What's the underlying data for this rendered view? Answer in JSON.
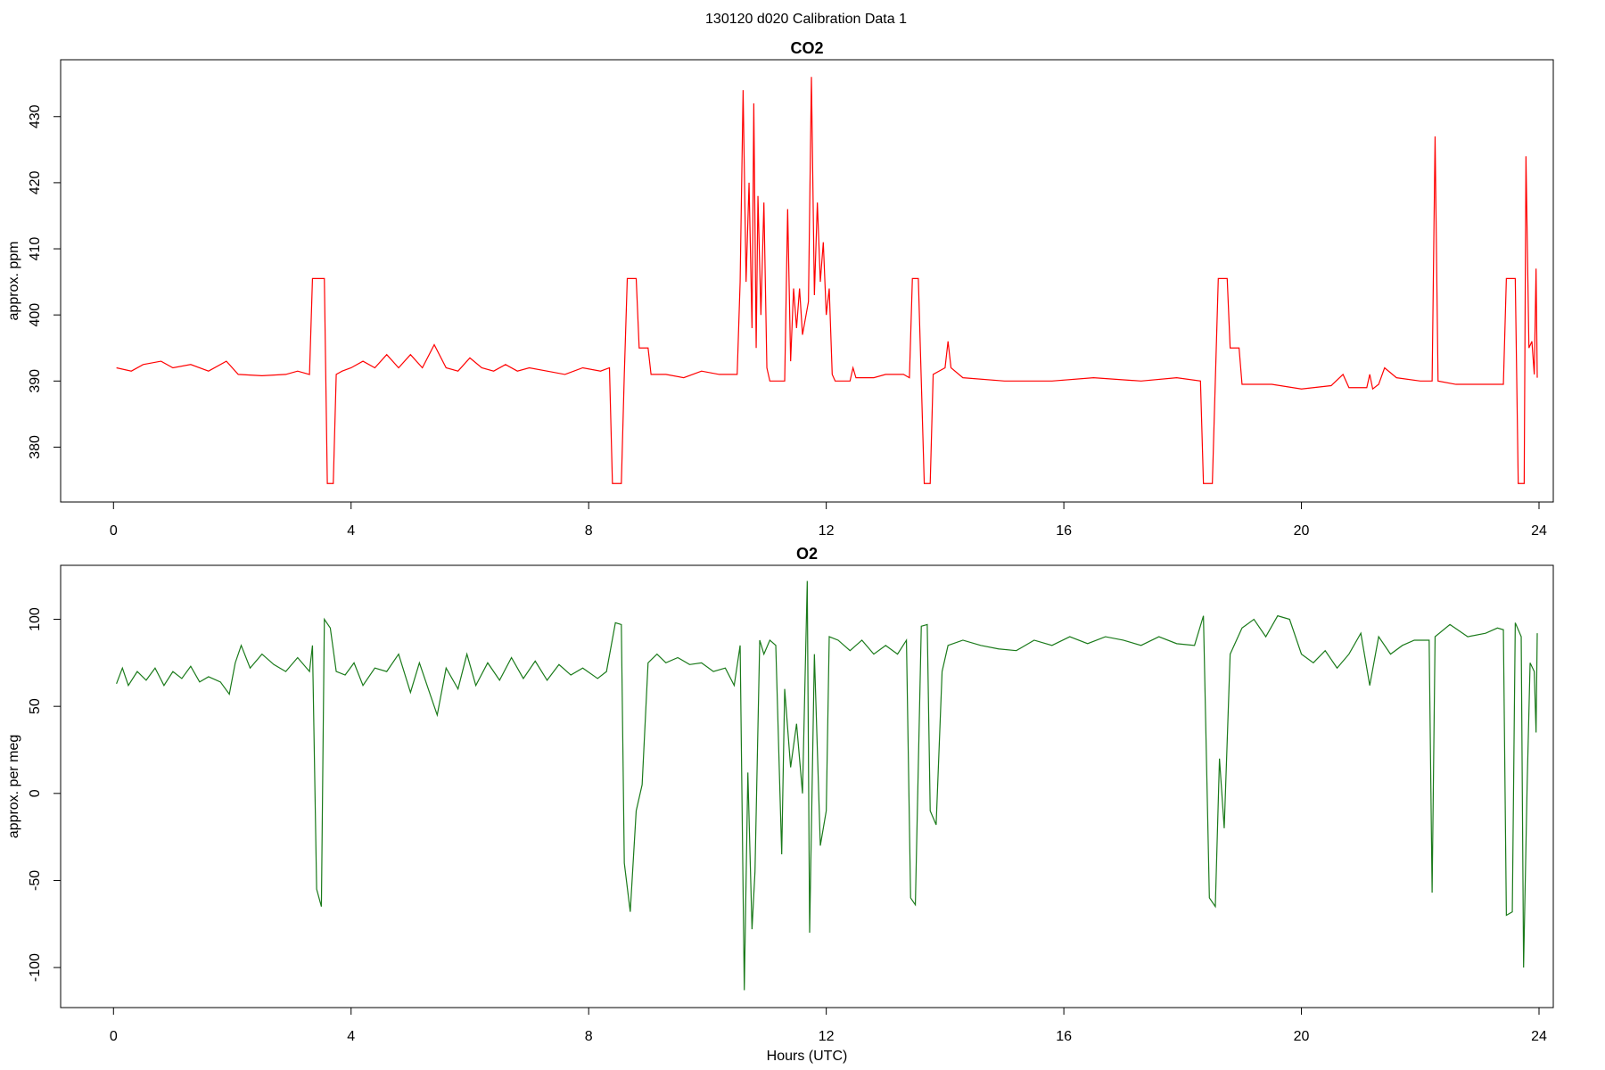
{
  "title": "130120   d020   Calibration Data 1",
  "chart_data": [
    {
      "type": "line",
      "title": "CO2",
      "ylabel": "approx. ppm",
      "color": "#ff0000",
      "xlim": [
        -0.89,
        24.24
      ],
      "xticks": [
        0,
        4,
        8,
        12,
        16,
        20,
        24
      ],
      "ylim": [
        371.7,
        438.6
      ],
      "yticks": [
        380,
        390,
        400,
        410,
        420,
        430
      ],
      "x": [
        0.05,
        0.3,
        0.5,
        0.8,
        1.0,
        1.3,
        1.6,
        1.9,
        2.1,
        2.5,
        2.9,
        3.1,
        3.3,
        3.35,
        3.55,
        3.6,
        3.7,
        3.75,
        3.85,
        4.0,
        4.2,
        4.4,
        4.6,
        4.8,
        5.0,
        5.2,
        5.4,
        5.6,
        5.8,
        6.0,
        6.2,
        6.4,
        6.6,
        6.8,
        7.0,
        7.3,
        7.6,
        7.9,
        8.2,
        8.35,
        8.4,
        8.55,
        8.6,
        8.65,
        8.8,
        8.85,
        9.0,
        9.05,
        9.3,
        9.6,
        9.9,
        10.2,
        10.5,
        10.55,
        10.6,
        10.65,
        10.7,
        10.75,
        10.78,
        10.82,
        10.85,
        10.9,
        10.95,
        11.0,
        11.05,
        11.3,
        11.35,
        11.4,
        11.45,
        11.5,
        11.55,
        11.6,
        11.7,
        11.75,
        11.8,
        11.85,
        11.9,
        11.95,
        12.0,
        12.05,
        12.1,
        12.15,
        12.4,
        12.45,
        12.5,
        12.8,
        13.0,
        13.3,
        13.4,
        13.45,
        13.55,
        13.65,
        13.75,
        13.8,
        14.0,
        14.05,
        14.1,
        14.3,
        15,
        15.8,
        16.5,
        17.3,
        17.9,
        18.3,
        18.35,
        18.5,
        18.55,
        18.6,
        18.75,
        18.8,
        18.95,
        19.0,
        19.5,
        20,
        20.5,
        20.7,
        20.8,
        21.1,
        21.15,
        21.2,
        21.3,
        21.4,
        21.6,
        22.0,
        22.2,
        22.25,
        22.3,
        22.6,
        23.0,
        23.4,
        23.45,
        23.6,
        23.65,
        23.75,
        23.78,
        23.83,
        23.88,
        23.92,
        23.95,
        23.97
      ],
      "values": [
        392,
        391.5,
        392.5,
        393,
        392,
        392.5,
        391.5,
        393,
        391,
        390.8,
        391,
        391.5,
        391,
        405.5,
        405.5,
        374.5,
        374.5,
        391,
        391.5,
        392,
        393,
        392,
        394,
        392,
        394,
        392,
        395.5,
        392,
        391.5,
        393.5,
        392,
        391.5,
        392.5,
        391.5,
        392,
        391.5,
        391,
        392,
        391.5,
        392,
        374.5,
        374.5,
        391,
        405.5,
        405.5,
        395,
        395,
        391,
        391,
        390.5,
        391.5,
        391,
        391,
        405,
        434,
        405,
        420,
        398,
        432,
        395,
        418,
        400,
        417,
        392,
        390,
        390,
        416,
        393,
        404,
        398,
        404,
        397,
        402,
        436,
        403,
        417,
        405,
        411,
        400,
        404,
        391,
        390,
        390,
        392,
        390.5,
        390.5,
        391,
        391,
        390.5,
        405.5,
        405.5,
        374.5,
        374.5,
        391,
        392,
        396,
        392,
        390.5,
        390,
        390,
        390.5,
        390,
        390.5,
        390,
        374.5,
        374.5,
        390,
        405.5,
        405.5,
        395,
        395,
        389.5,
        389.5,
        388.8,
        389.3,
        391,
        389,
        389,
        391,
        388.8,
        389.5,
        392,
        390.5,
        390,
        390,
        427,
        390,
        389.5,
        389.5,
        389.5,
        405.5,
        405.5,
        374.5,
        374.5,
        424,
        395,
        396,
        391,
        407,
        390.5
      ]
    },
    {
      "type": "line",
      "title": "O2",
      "ylabel": "approx. per meg",
      "xlabel": "Hours (UTC)",
      "color": "#1a7a1a",
      "xlim": [
        -0.89,
        24.24
      ],
      "xticks": [
        0,
        4,
        8,
        12,
        16,
        20,
        24
      ],
      "ylim": [
        -123,
        131
      ],
      "yticks": [
        -100,
        -50,
        0,
        50,
        100
      ],
      "x": [
        0.05,
        0.15,
        0.25,
        0.4,
        0.55,
        0.7,
        0.85,
        1.0,
        1.15,
        1.3,
        1.45,
        1.6,
        1.8,
        1.95,
        2.05,
        2.15,
        2.3,
        2.5,
        2.7,
        2.9,
        3.1,
        3.3,
        3.35,
        3.42,
        3.5,
        3.55,
        3.65,
        3.75,
        3.9,
        4.05,
        4.2,
        4.4,
        4.6,
        4.8,
        5.0,
        5.15,
        5.3,
        5.45,
        5.6,
        5.8,
        5.95,
        6.1,
        6.3,
        6.5,
        6.7,
        6.9,
        7.1,
        7.3,
        7.5,
        7.7,
        7.9,
        8.15,
        8.3,
        8.45,
        8.55,
        8.6,
        8.7,
        8.8,
        8.9,
        9.0,
        9.15,
        9.3,
        9.5,
        9.7,
        9.9,
        10.1,
        10.3,
        10.45,
        10.55,
        10.62,
        10.68,
        10.75,
        10.8,
        10.88,
        10.95,
        11.05,
        11.15,
        11.25,
        11.3,
        11.4,
        11.5,
        11.6,
        11.68,
        11.72,
        11.8,
        11.9,
        12.0,
        12.05,
        12.2,
        12.4,
        12.6,
        12.8,
        13.0,
        13.2,
        13.35,
        13.42,
        13.5,
        13.6,
        13.7,
        13.75,
        13.85,
        13.95,
        14.05,
        14.3,
        14.6,
        14.9,
        15.2,
        15.5,
        15.8,
        16.1,
        16.4,
        16.7,
        17.0,
        17.3,
        17.6,
        17.9,
        18.2,
        18.35,
        18.45,
        18.55,
        18.62,
        18.7,
        18.8,
        19.0,
        19.2,
        19.4,
        19.6,
        19.8,
        20.0,
        20.2,
        20.4,
        20.6,
        20.8,
        21.0,
        21.15,
        21.3,
        21.5,
        21.7,
        21.9,
        22.15,
        22.2,
        22.25,
        22.5,
        22.8,
        23.1,
        23.3,
        23.4,
        23.45,
        23.55,
        23.6,
        23.7,
        23.74,
        23.8,
        23.85,
        23.92,
        23.95,
        23.97
      ],
      "values": [
        63,
        72,
        62,
        70,
        65,
        72,
        62,
        70,
        66,
        73,
        64,
        67,
        64,
        57,
        75,
        85,
        72,
        80,
        74,
        70,
        78,
        70,
        85,
        -55,
        -65,
        100,
        95,
        70,
        68,
        75,
        62,
        72,
        70,
        80,
        58,
        75,
        60,
        45,
        72,
        60,
        80,
        62,
        75,
        65,
        78,
        66,
        76,
        65,
        74,
        68,
        72,
        66,
        70,
        98,
        97,
        -40,
        -68,
        -10,
        5,
        75,
        80,
        75,
        78,
        74,
        75,
        70,
        72,
        62,
        85,
        -113,
        12,
        -78,
        -45,
        88,
        80,
        88,
        85,
        -35,
        60,
        15,
        40,
        0,
        122,
        -80,
        80,
        -30,
        -10,
        90,
        88,
        82,
        88,
        80,
        85,
        80,
        88,
        -60,
        -64,
        96,
        97,
        -10,
        -18,
        70,
        85,
        88,
        85,
        83,
        82,
        88,
        85,
        90,
        86,
        90,
        88,
        85,
        90,
        86,
        85,
        102,
        -60,
        -65,
        20,
        -20,
        80,
        95,
        100,
        90,
        102,
        100,
        80,
        75,
        82,
        72,
        80,
        92,
        62,
        90,
        80,
        85,
        88,
        88,
        -57,
        90,
        97,
        90,
        92,
        95,
        94,
        -70,
        -68,
        98,
        90,
        -100,
        5,
        75,
        70,
        35,
        92
      ]
    }
  ]
}
